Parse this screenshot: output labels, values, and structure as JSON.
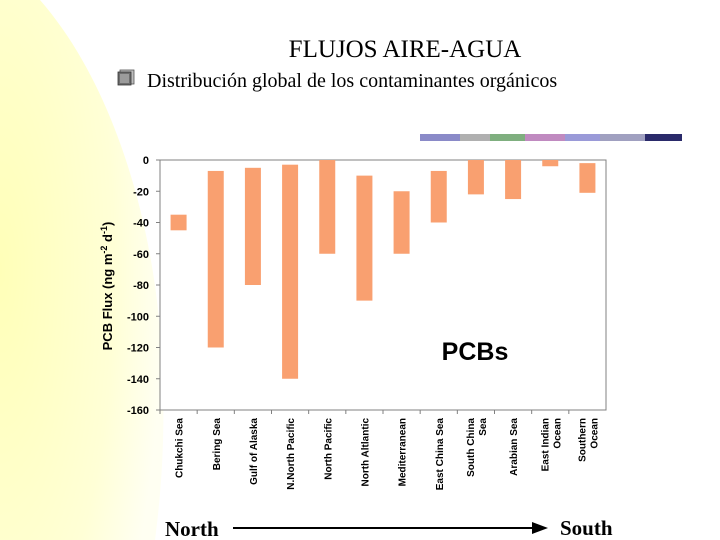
{
  "slide": {
    "title": "FLUJOS AIRE-AGUA",
    "subtitle": "Distribución global de los contaminantes orgánicos"
  },
  "colors": {
    "bar": "#F9A070",
    "background_wash": "#FFFFCC"
  },
  "chart_data": {
    "type": "bar",
    "title": "",
    "xlabel": "",
    "ylabel": "PCB Flux (ng m-2 d-1)",
    "ylim": [
      -160,
      0
    ],
    "yticks": [
      0,
      -20,
      -40,
      -60,
      -80,
      -100,
      -120,
      -140,
      -160
    ],
    "annotation": "PCBs",
    "categories": [
      [
        "Chukchi Sea"
      ],
      [
        "Bering Sea"
      ],
      [
        "Gulf of Alaska"
      ],
      [
        "N.North Pacific"
      ],
      [
        "North Pacific"
      ],
      [
        "North Altlantic"
      ],
      [
        "Mediterranean"
      ],
      [
        "East China Sea"
      ],
      [
        "South China",
        "Sea"
      ],
      [
        "Arabian Sea"
      ],
      [
        "East Indian",
        "Ocean"
      ],
      [
        "Southern",
        "Ocean"
      ]
    ],
    "ranges": [
      [
        -35,
        -45
      ],
      [
        -7,
        -120
      ],
      [
        -5,
        -80
      ],
      [
        -3,
        -140
      ],
      [
        0,
        -60
      ],
      [
        -10,
        -90
      ],
      [
        -20,
        -60
      ],
      [
        -7,
        -40
      ],
      [
        0,
        -22
      ],
      [
        0,
        -25
      ],
      [
        0,
        -4
      ],
      [
        -2,
        -21
      ]
    ],
    "direction": {
      "start": "North",
      "end": "South"
    }
  }
}
